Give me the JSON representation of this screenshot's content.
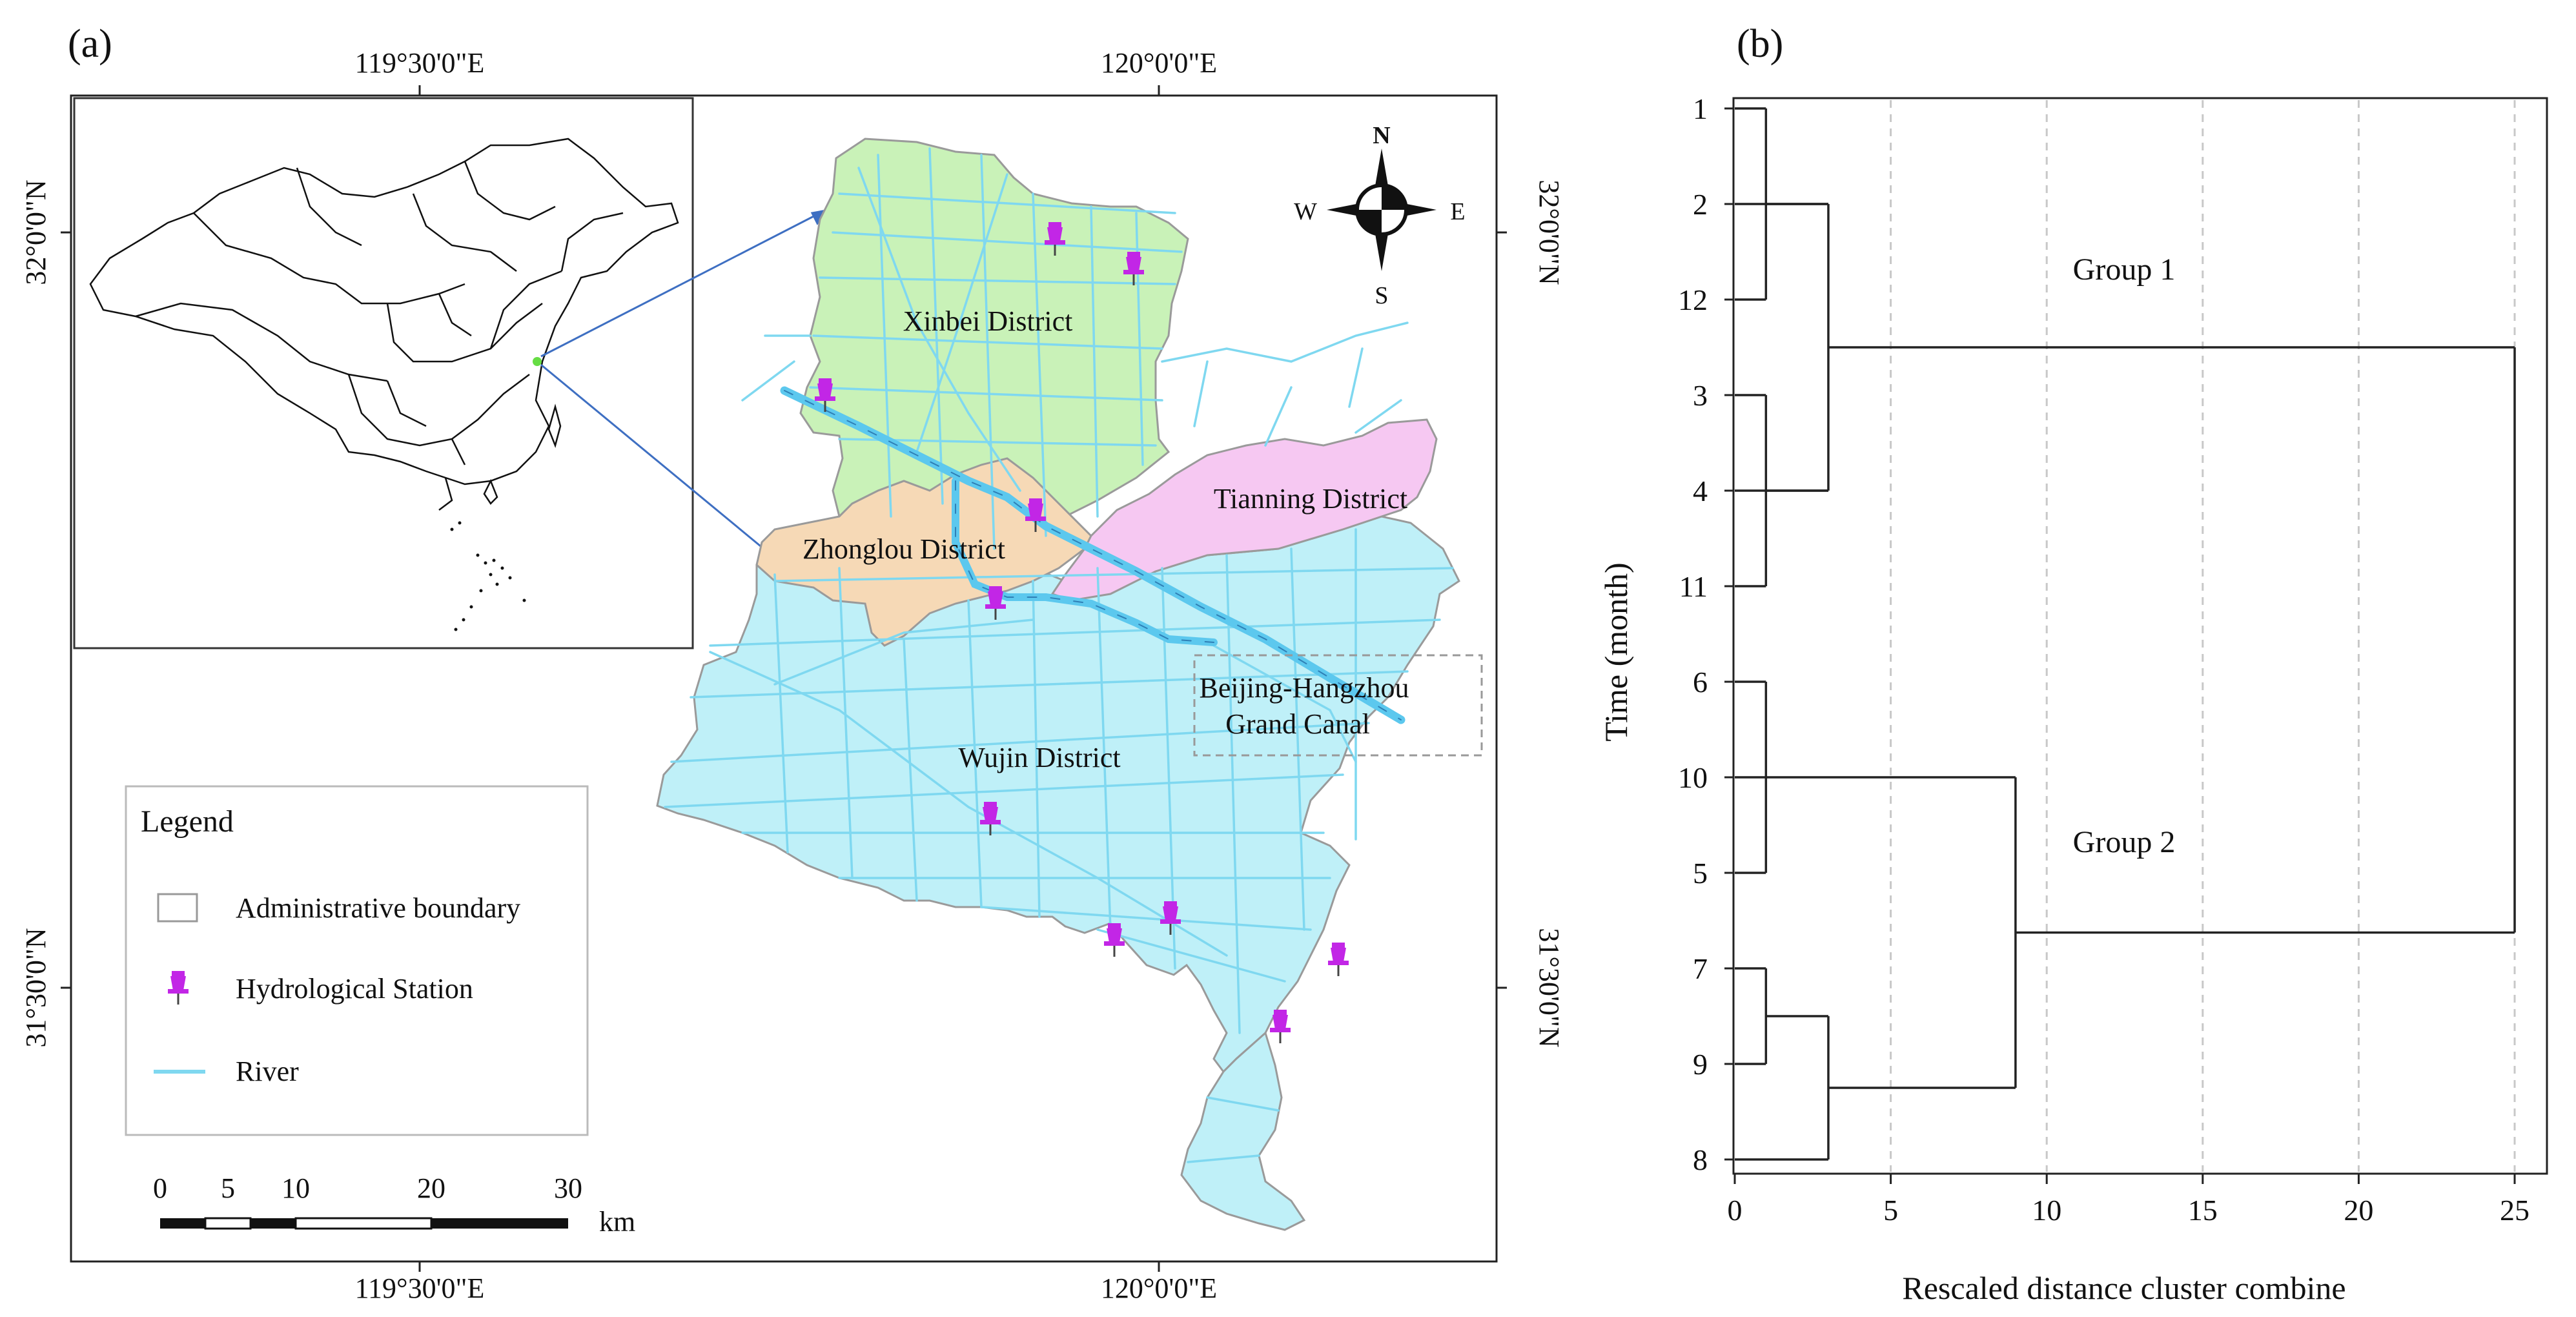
{
  "panel_a": {
    "label": "(a)",
    "coords": {
      "top_left": "119°30'0\"E",
      "top_right": "120°0'0\"E",
      "bottom_left": "119°30'0\"E",
      "bottom_right": "120°0'0\"E",
      "left_top": "32°0'0\"N",
      "left_bottom": "31°30'0\"N",
      "right_top": "32°0'0\"N",
      "right_bottom": "31°30'0\"N"
    },
    "compass": {
      "n": "N",
      "s": "S",
      "e": "E",
      "w": "W"
    },
    "districts": [
      {
        "name": "Xinbei District",
        "color": "#c9f2b8"
      },
      {
        "name": "Tianning District",
        "color": "#f6c8f2"
      },
      {
        "name": "Zhonglou District",
        "color": "#f6d9b6"
      },
      {
        "name": "Wujin District",
        "color": "#bff0f8"
      }
    ],
    "canal_label_line1": "Beijing-Hangzhou",
    "canal_label_line2": "Grand Canal",
    "legend": {
      "title": "Legend",
      "items": [
        {
          "label": "Administrative boundary",
          "icon": "boundary-box-icon"
        },
        {
          "label": "Hydrological Station",
          "icon": "pushpin-icon"
        },
        {
          "label": "River",
          "icon": "river-line-icon"
        }
      ]
    },
    "scale": {
      "ticks": [
        "0",
        "5",
        "10",
        "20",
        "30"
      ],
      "unit": "km"
    },
    "colors": {
      "river": "#7fd8f0",
      "station": "#c226e6",
      "canal": "#5cc8ee"
    }
  },
  "panel_b": {
    "label": "(b)",
    "chart_data": {
      "type": "dendrogram",
      "ylabel": "Time (month)",
      "xlabel": "Rescaled distance cluster combine",
      "leaf_order": [
        "1",
        "2",
        "12",
        "3",
        "4",
        "11",
        "6",
        "10",
        "5",
        "7",
        "9",
        "8"
      ],
      "x_ticks": [
        "0",
        "5",
        "10",
        "15",
        "20",
        "25"
      ],
      "xlim": [
        0,
        25
      ],
      "grid": "vertical dashed",
      "groups": [
        {
          "name": "Group 1",
          "leaves": [
            "1",
            "2",
            "12",
            "3",
            "4",
            "11"
          ]
        },
        {
          "name": "Group 2",
          "leaves": [
            "6",
            "10",
            "5",
            "7",
            "9",
            "8"
          ]
        }
      ],
      "merges": [
        {
          "leaves": [
            "1",
            "12"
          ],
          "distance": 1
        },
        {
          "leaves": [
            "1",
            "12",
            "2"
          ],
          "distance": 3
        },
        {
          "leaves": [
            "3",
            "11"
          ],
          "distance": 1
        },
        {
          "leaves": [
            "3",
            "11",
            "4"
          ],
          "distance": 3
        },
        {
          "leaves": [
            "1",
            "2",
            "12",
            "3",
            "4",
            "11"
          ],
          "distance": 3
        },
        {
          "leaves": [
            "6",
            "5"
          ],
          "distance": 1
        },
        {
          "leaves": [
            "6",
            "5",
            "10"
          ],
          "distance": 1
        },
        {
          "leaves": [
            "7",
            "9"
          ],
          "distance": 1
        },
        {
          "leaves": [
            "7",
            "9",
            "8"
          ],
          "distance": 3
        },
        {
          "leaves": [
            "6",
            "10",
            "5",
            "7",
            "9",
            "8"
          ],
          "distance": 9
        },
        {
          "leaves": [
            "all"
          ],
          "distance": 25
        }
      ]
    }
  }
}
